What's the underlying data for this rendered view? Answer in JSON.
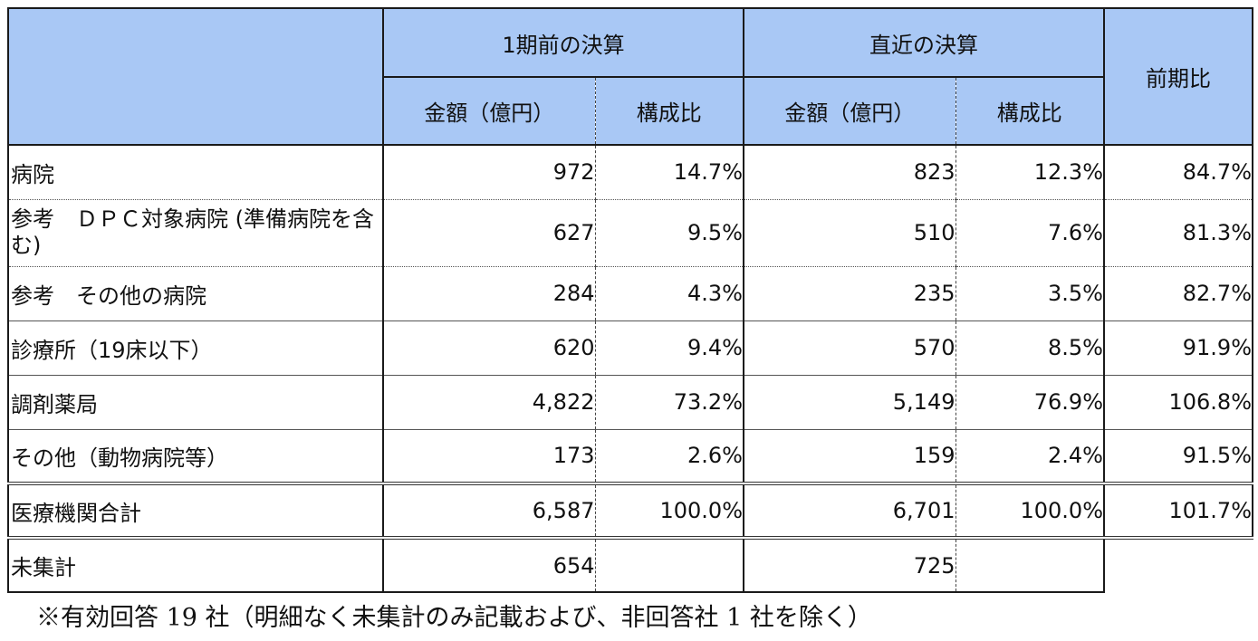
{
  "header": {
    "group_prev": "1期前の決算",
    "group_recent": "直近の決算",
    "ratio": "前期比",
    "amount": "金額（億円）",
    "share": "構成比"
  },
  "rows": [
    {
      "label": "病院",
      "prev_amount": "972",
      "prev_share": "14.7%",
      "recent_amount": "823",
      "recent_share": "12.3%",
      "ratio": "84.7%"
    },
    {
      "label": " 参考　ＤＰＣ対象病院 (準備病院を含む)",
      "prev_amount": "627",
      "prev_share": "9.5%",
      "recent_amount": "510",
      "recent_share": "7.6%",
      "ratio": "81.3%"
    },
    {
      "label": " 参考　その他の病院",
      "prev_amount": "284",
      "prev_share": "4.3%",
      "recent_amount": "235",
      "recent_share": "3.5%",
      "ratio": "82.7%"
    },
    {
      "label": "診療所（19床以下）",
      "prev_amount": "620",
      "prev_share": "9.4%",
      "recent_amount": "570",
      "recent_share": "8.5%",
      "ratio": "91.9%"
    },
    {
      "label": "調剤薬局",
      "prev_amount": "4,822",
      "prev_share": "73.2%",
      "recent_amount": "5,149",
      "recent_share": "76.9%",
      "ratio": "106.8%"
    },
    {
      "label": "その他（動物病院等）",
      "prev_amount": "173",
      "prev_share": "2.6%",
      "recent_amount": "159",
      "recent_share": "2.4%",
      "ratio": "91.5%"
    },
    {
      "label": "医療機関合計",
      "prev_amount": "6,587",
      "prev_share": "100.0%",
      "recent_amount": "6,701",
      "recent_share": "100.0%",
      "ratio": "101.7%"
    },
    {
      "label": "未集計",
      "prev_amount": "654",
      "prev_share": "",
      "recent_amount": "725",
      "recent_share": "",
      "ratio": ""
    }
  ],
  "note": "※有効回答 19 社（明細なく未集計のみ記載および、非回答社 1 社を除く）"
}
